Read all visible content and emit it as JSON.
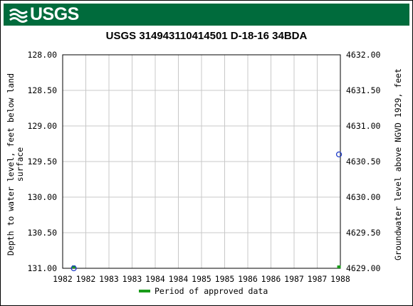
{
  "header": {
    "logo_text": "USGS",
    "logo_icon": "usgs-wave-icon"
  },
  "chart_data": {
    "type": "scatter",
    "title": "USGS 314943110414501 D-18-16 34BDA",
    "ylabel_left_line1": "Depth to water level, feet below land",
    "ylabel_left_line2": "surface",
    "ylabel_right": "Groundwater level above NGVD 1929, feet",
    "left_axis": {
      "min": 128.0,
      "max": 131.0,
      "inverted": true,
      "ticks": [
        "128.00",
        "128.50",
        "129.00",
        "129.50",
        "130.00",
        "130.50",
        "131.00"
      ]
    },
    "right_axis": {
      "min": 4629.0,
      "max": 4632.0,
      "ticks": [
        "4632.00",
        "4631.50",
        "4631.00",
        "4630.50",
        "4630.00",
        "4629.50",
        "4629.00"
      ]
    },
    "x_ticks": [
      "1982",
      "1982",
      "1983",
      "1983",
      "1984",
      "1984",
      "1985",
      "1985",
      "1986",
      "1986",
      "1987",
      "1987",
      "1988"
    ],
    "grid": true,
    "points": [
      {
        "x_fraction": 0.04,
        "depth": 131.0
      },
      {
        "x_fraction": 0.995,
        "depth": 129.4
      }
    ],
    "approved_periods": [
      {
        "x_fraction": 0.04
      },
      {
        "x_fraction": 0.995
      }
    ],
    "colors": {
      "point": "#1f3cc8",
      "approved": "#1a9c1a",
      "grid": "#c8c8c8"
    },
    "legend": {
      "label": "Period of approved data",
      "placement": "bottom-center"
    }
  }
}
